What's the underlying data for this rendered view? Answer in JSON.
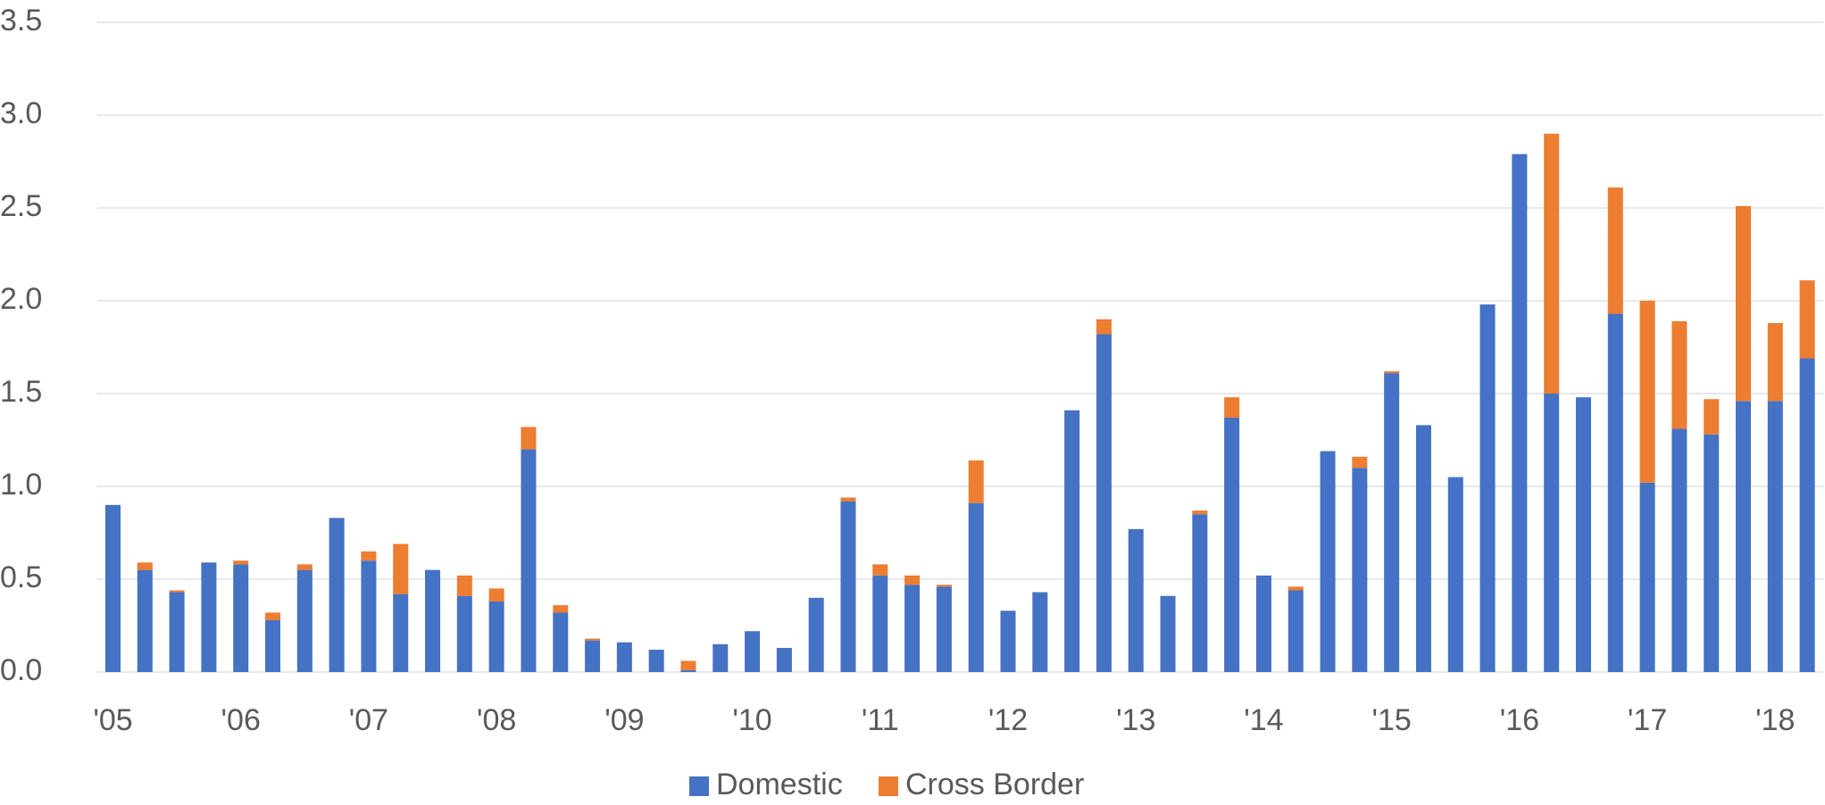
{
  "chart_data": {
    "type": "stacked_bar",
    "categories": [
      "'05",
      null,
      null,
      null,
      "'06",
      null,
      null,
      null,
      "'07",
      null,
      null,
      null,
      "'08",
      null,
      null,
      null,
      "'09",
      null,
      null,
      null,
      "'10",
      null,
      null,
      null,
      "'11",
      null,
      null,
      null,
      "'12",
      null,
      null,
      null,
      "'13",
      null,
      null,
      null,
      "'14",
      null,
      null,
      null,
      "'15",
      null,
      null,
      null,
      "'16",
      null,
      null,
      null,
      "'17",
      null,
      null,
      null,
      "'18",
      null
    ],
    "series": [
      {
        "name": "Domestic",
        "color": "#4472c4",
        "values": [
          0.9,
          0.55,
          0.43,
          0.59,
          0.58,
          0.28,
          0.55,
          0.83,
          0.6,
          0.42,
          0.55,
          0.41,
          0.38,
          1.2,
          0.32,
          0.17,
          0.16,
          0.12,
          0.01,
          0.15,
          0.22,
          0.13,
          0.4,
          0.92,
          0.52,
          0.47,
          0.46,
          0.91,
          0.33,
          0.43,
          1.41,
          1.82,
          0.77,
          0.41,
          0.85,
          1.37,
          0.52,
          0.44,
          1.19,
          1.1,
          1.61,
          1.33,
          1.05,
          1.98,
          2.79,
          1.5,
          1.48,
          1.93,
          1.02,
          1.31,
          1.28,
          1.46,
          1.46,
          1.69
        ]
      },
      {
        "name": "Cross Border",
        "color": "#ed7d31",
        "values": [
          0,
          0.04,
          0.01,
          0,
          0.02,
          0.04,
          0.03,
          0,
          0.05,
          0.27,
          0,
          0.11,
          0.07,
          0.12,
          0.04,
          0.01,
          0,
          0,
          0.05,
          0,
          0,
          0,
          0,
          0.02,
          0.06,
          0.05,
          0.01,
          0.23,
          0,
          0,
          0,
          0.08,
          0,
          0,
          0.02,
          0.11,
          0,
          0.02,
          0,
          0.06,
          0.01,
          0,
          0,
          0,
          0,
          1.4,
          0,
          0.68,
          0.98,
          0.58,
          0.19,
          1.05,
          0.42,
          0.42
        ]
      }
    ],
    "ylim": [
      0,
      3.5
    ],
    "yticks": [
      {
        "value": 0,
        "label": "0.0"
      },
      {
        "value": 0.5,
        "label": "0.5"
      },
      {
        "value": 1,
        "label": "1.0"
      },
      {
        "value": 1.5,
        "label": "1.5"
      },
      {
        "value": 2,
        "label": "2.0"
      },
      {
        "value": 2.5,
        "label": "2.5"
      },
      {
        "value": 3,
        "label": "3.0"
      },
      {
        "value": 3.5,
        "label": "3.5"
      }
    ],
    "grid": true,
    "legend": "bottom"
  }
}
